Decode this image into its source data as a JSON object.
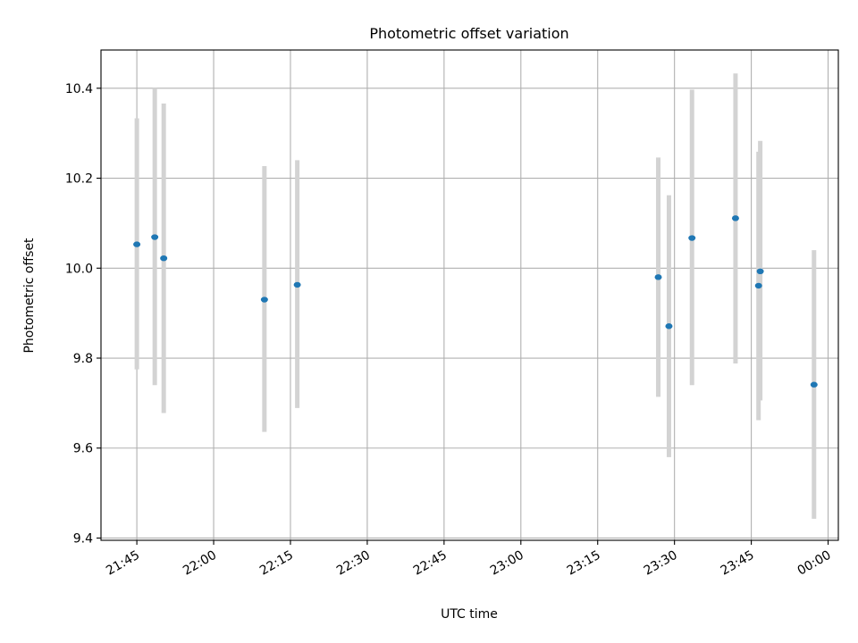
{
  "chart_data": {
    "type": "scatter",
    "title": "Photometric offset variation",
    "xlabel": "UTC time",
    "ylabel": "Photometric offset",
    "x_axis": "time",
    "xlim": [
      "21:38",
      "00:02"
    ],
    "ylim": [
      9.395,
      10.485
    ],
    "x_ticks": [
      "21:45",
      "22:00",
      "22:15",
      "22:30",
      "22:45",
      "23:00",
      "23:15",
      "23:30",
      "23:45",
      "00:00"
    ],
    "y_ticks": [
      9.4,
      9.6,
      9.8,
      10.0,
      10.2,
      10.4
    ],
    "grid": true,
    "legend": false,
    "series": [
      {
        "marker_color": "#1f77b4",
        "errorbar_color": "#d3d3d3",
        "points": [
          {
            "t": "21:45:00",
            "y": 10.053,
            "lo": 9.775,
            "hi": 10.333
          },
          {
            "t": "21:48:30",
            "y": 10.069,
            "lo": 9.74,
            "hi": 10.4
          },
          {
            "t": "21:50:15",
            "y": 10.022,
            "lo": 9.678,
            "hi": 10.366
          },
          {
            "t": "22:09:55",
            "y": 9.93,
            "lo": 9.636,
            "hi": 10.227
          },
          {
            "t": "22:16:20",
            "y": 9.963,
            "lo": 9.689,
            "hi": 10.24
          },
          {
            "t": "23:26:50",
            "y": 9.98,
            "lo": 9.714,
            "hi": 10.246
          },
          {
            "t": "23:28:55",
            "y": 9.871,
            "lo": 9.58,
            "hi": 10.162
          },
          {
            "t": "23:33:25",
            "y": 10.067,
            "lo": 9.74,
            "hi": 10.397
          },
          {
            "t": "23:41:55",
            "y": 10.111,
            "lo": 9.788,
            "hi": 10.433
          },
          {
            "t": "23:46:25",
            "y": 9.961,
            "lo": 9.662,
            "hi": 10.259
          },
          {
            "t": "23:46:45",
            "y": 9.993,
            "lo": 9.706,
            "hi": 10.283
          },
          {
            "t": "23:57:15",
            "y": 9.741,
            "lo": 9.443,
            "hi": 10.04
          }
        ]
      }
    ]
  }
}
